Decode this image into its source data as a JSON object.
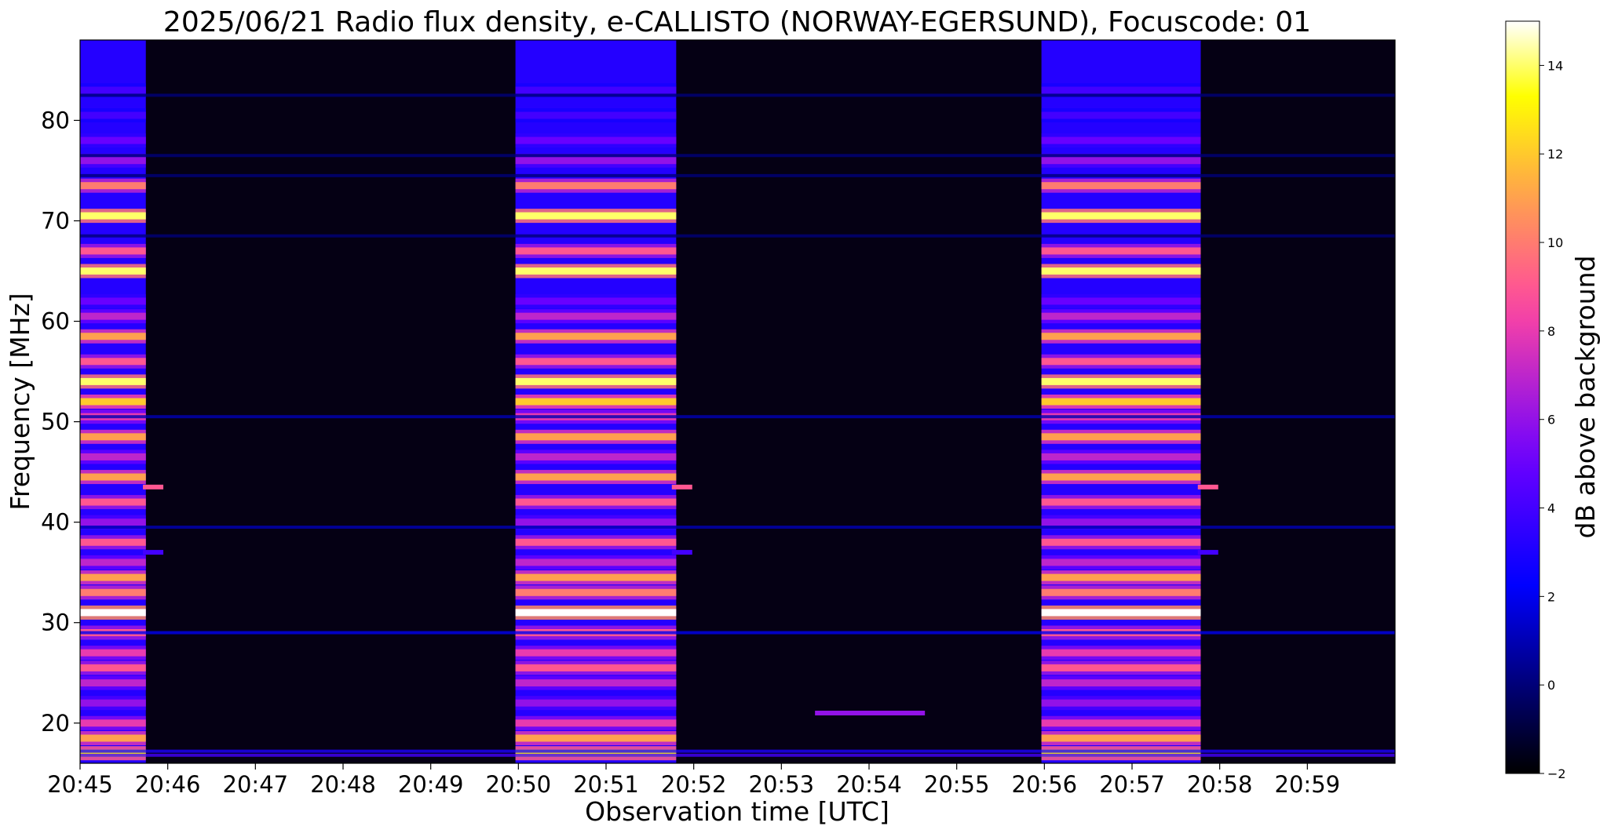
{
  "chart_data": {
    "type": "heatmap",
    "title": "2025/06/21  Radio flux density, e-CALLISTO (NORWAY-EGERSUND), Focuscode: 01",
    "xlabel": "Observation time [UTC]",
    "ylabel": "Frequency [MHz]",
    "colorbar_label": "dB above background",
    "colormap": "gnuplot2",
    "xlim": [
      "20:45",
      "21:00"
    ],
    "ylim": [
      16,
      88
    ],
    "clim": [
      -2,
      15
    ],
    "x_ticks": [
      "20:45",
      "20:46",
      "20:47",
      "20:48",
      "20:49",
      "20:50",
      "20:51",
      "20:52",
      "20:53",
      "20:54",
      "20:55",
      "20:56",
      "20:57",
      "20:58",
      "20:59"
    ],
    "y_ticks": [
      20,
      30,
      40,
      50,
      60,
      70,
      80
    ],
    "colorbar_ticks": [
      -2,
      0,
      2,
      4,
      6,
      8,
      10,
      12,
      14
    ],
    "calibration_blocks": [
      {
        "start": "20:45:00",
        "end": "20:45:45"
      },
      {
        "start": "20:49:58",
        "end": "20:51:48"
      },
      {
        "start": "20:55:58",
        "end": "20:57:47"
      }
    ],
    "emission_lines_mhz": [
      {
        "freq": 17,
        "level": 13
      },
      {
        "freq": 18.5,
        "level": 11
      },
      {
        "freq": 20,
        "level": 8
      },
      {
        "freq": 22,
        "level": 6
      },
      {
        "freq": 24,
        "level": 7
      },
      {
        "freq": 25.5,
        "level": 9
      },
      {
        "freq": 27,
        "level": 8
      },
      {
        "freq": 29,
        "level": 9
      },
      {
        "freq": 31,
        "level": 15
      },
      {
        "freq": 33,
        "level": 10
      },
      {
        "freq": 34.5,
        "level": 11
      },
      {
        "freq": 36,
        "level": 7
      },
      {
        "freq": 38,
        "level": 9
      },
      {
        "freq": 40,
        "level": 6
      },
      {
        "freq": 42,
        "level": 9
      },
      {
        "freq": 44.5,
        "level": 11
      },
      {
        "freq": 46.5,
        "level": 7
      },
      {
        "freq": 48.5,
        "level": 11
      },
      {
        "freq": 50.5,
        "level": 8
      },
      {
        "freq": 52,
        "level": 12
      },
      {
        "freq": 54,
        "level": 14
      },
      {
        "freq": 56,
        "level": 9
      },
      {
        "freq": 58.5,
        "level": 11
      },
      {
        "freq": 60.5,
        "level": 7
      },
      {
        "freq": 62,
        "level": 5
      },
      {
        "freq": 65,
        "level": 14
      },
      {
        "freq": 67,
        "level": 9
      },
      {
        "freq": 70.5,
        "level": 14
      },
      {
        "freq": 73.5,
        "level": 10
      },
      {
        "freq": 76,
        "level": 6
      },
      {
        "freq": 78,
        "level": 5
      },
      {
        "freq": 80.5,
        "level": 4
      },
      {
        "freq": 83,
        "level": 4
      }
    ],
    "persistent_lines_mhz": [
      {
        "freq": 16.8,
        "level": 4
      },
      {
        "freq": 17.2,
        "level": 3
      },
      {
        "freq": 29,
        "level": 2
      },
      {
        "freq": 39.5,
        "level": 1
      },
      {
        "freq": 50.5,
        "level": 1
      },
      {
        "freq": 68.5,
        "level": 0
      },
      {
        "freq": 74.5,
        "level": 0
      },
      {
        "freq": 76.5,
        "level": 0
      },
      {
        "freq": 82.5,
        "level": 0
      }
    ],
    "transient_features": [
      {
        "time": "20:45:50",
        "freq": 43.5,
        "level": 9
      },
      {
        "time": "20:45:50",
        "freq": 37,
        "level": 4
      },
      {
        "time": "20:51:52",
        "freq": 43.5,
        "level": 9
      },
      {
        "time": "20:51:52",
        "freq": 37,
        "level": 4
      },
      {
        "time": "20:57:52",
        "freq": 43.5,
        "level": 9
      },
      {
        "time": "20:57:52",
        "freq": 37,
        "level": 4
      },
      {
        "time": "20:53:30",
        "freq": 21,
        "level": 6
      }
    ]
  }
}
